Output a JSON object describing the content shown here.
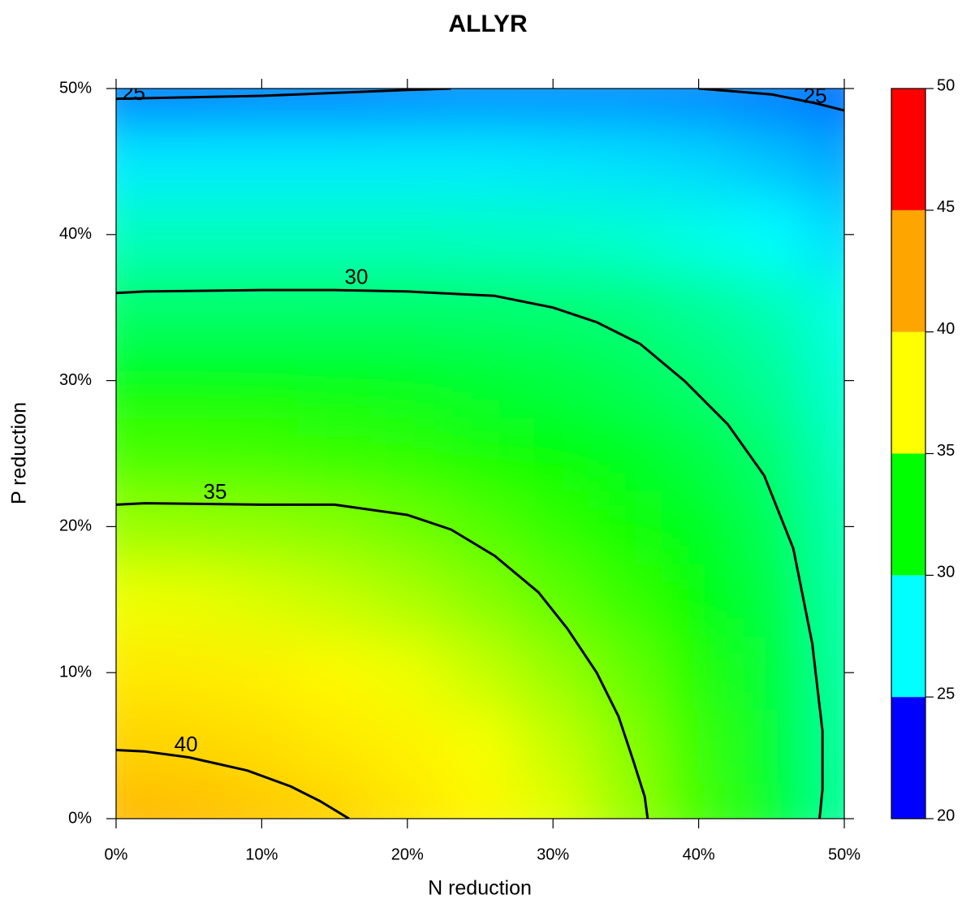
{
  "chart_data": {
    "type": "contour",
    "title": "ALLYR",
    "xlabel": "N reduction",
    "ylabel": "P reduction",
    "xlim": [
      0,
      50
    ],
    "ylim": [
      0,
      50
    ],
    "xticks": [
      {
        "value": 0,
        "label": "0%"
      },
      {
        "value": 10,
        "label": "10%"
      },
      {
        "value": 20,
        "label": "20%"
      },
      {
        "value": 30,
        "label": "30%"
      },
      {
        "value": 40,
        "label": "40%"
      },
      {
        "value": 50,
        "label": "50%"
      }
    ],
    "yticks": [
      {
        "value": 0,
        "label": "0%"
      },
      {
        "value": 10,
        "label": "10%"
      },
      {
        "value": 20,
        "label": "20%"
      },
      {
        "value": 30,
        "label": "30%"
      },
      {
        "value": 40,
        "label": "40%"
      },
      {
        "value": 50,
        "label": "50%"
      }
    ],
    "grid_x": [
      0,
      5,
      10,
      15,
      20,
      25,
      30,
      35,
      40,
      45,
      50
    ],
    "grid_y": [
      0,
      5,
      10,
      15,
      20,
      25,
      30,
      35,
      40,
      45,
      50
    ],
    "z": [
      [
        41.5,
        41.2,
        40.6,
        40.1,
        39,
        38,
        37,
        35.6,
        33.8,
        31.8,
        29.5
      ],
      [
        40,
        39.8,
        39.4,
        38.8,
        38.2,
        37.4,
        36.4,
        35.2,
        33.6,
        31.7,
        29.4
      ],
      [
        38.7,
        38.6,
        38.3,
        37.8,
        37.2,
        36.4,
        35.5,
        34.5,
        33.2,
        31.5,
        29.3
      ],
      [
        37.2,
        37.1,
        36.8,
        36.4,
        35.9,
        35.2,
        34.4,
        33.6,
        32.6,
        31.2,
        29.2
      ],
      [
        35.5,
        35.4,
        35.3,
        35.1,
        34.7,
        34.1,
        33.5,
        32.8,
        32,
        30.8,
        29
      ],
      [
        33.8,
        33.8,
        33.7,
        33.5,
        33.3,
        32.9,
        32.4,
        31.9,
        31.2,
        30.3,
        28.7
      ],
      [
        32.3,
        32.3,
        32.2,
        32.1,
        31.9,
        31.6,
        31.3,
        30.9,
        30.3,
        29.6,
        28.3
      ],
      [
        30.5,
        30.5,
        30.5,
        30.5,
        30.5,
        30.4,
        30.3,
        30.1,
        29.6,
        29,
        28
      ],
      [
        28.8,
        28.8,
        28.8,
        28.8,
        28.8,
        28.7,
        28.6,
        28.4,
        28,
        27.5,
        26.8
      ],
      [
        27.1,
        27.1,
        27.1,
        27.1,
        27.1,
        27.1,
        27,
        26.9,
        26.7,
        26.3,
        25.8
      ],
      [
        24.9,
        24.9,
        25,
        25,
        25.1,
        25.2,
        25.2,
        25.2,
        25.1,
        24.9,
        24.6
      ]
    ],
    "contour_color": "#000000",
    "contours": [
      {
        "level": 40,
        "x": [
          0,
          2,
          5,
          9,
          12,
          14,
          16
        ],
        "y": [
          4.7,
          4.6,
          4.2,
          3.3,
          2.2,
          1.2,
          0
        ]
      },
      {
        "level": 35,
        "x": [
          0,
          2,
          10,
          15,
          20,
          23,
          26,
          29,
          31,
          33,
          34.5,
          35.5,
          36.3,
          36.5
        ],
        "y": [
          21.5,
          21.6,
          21.5,
          21.5,
          20.8,
          19.8,
          18,
          15.5,
          13,
          10,
          7,
          4,
          1.5,
          0
        ]
      },
      {
        "level": 30,
        "x": [
          0,
          2,
          10,
          15,
          20,
          26,
          30,
          33,
          36,
          39,
          42,
          44.5,
          46.5,
          47.8,
          48.5,
          48.5,
          48.3
        ],
        "y": [
          36,
          36.1,
          36.2,
          36.2,
          36.1,
          35.8,
          35,
          34,
          32.5,
          30,
          27,
          23.5,
          18.5,
          12,
          6,
          2,
          0
        ]
      },
      {
        "level": 25,
        "x": [
          0,
          10,
          20,
          23,
          null,
          40,
          45,
          48,
          50
        ],
        "y": [
          49.3,
          49.5,
          49.9,
          50,
          null,
          50,
          49.6,
          49,
          48.5
        ]
      }
    ],
    "colorbar": {
      "levels": [
        20,
        25,
        30,
        35,
        40,
        45,
        50
      ],
      "colors": [
        "#0000ff",
        "#00ffff",
        "#00ff00",
        "#ffff00",
        "#ffa500",
        "#ff0000"
      ]
    }
  }
}
